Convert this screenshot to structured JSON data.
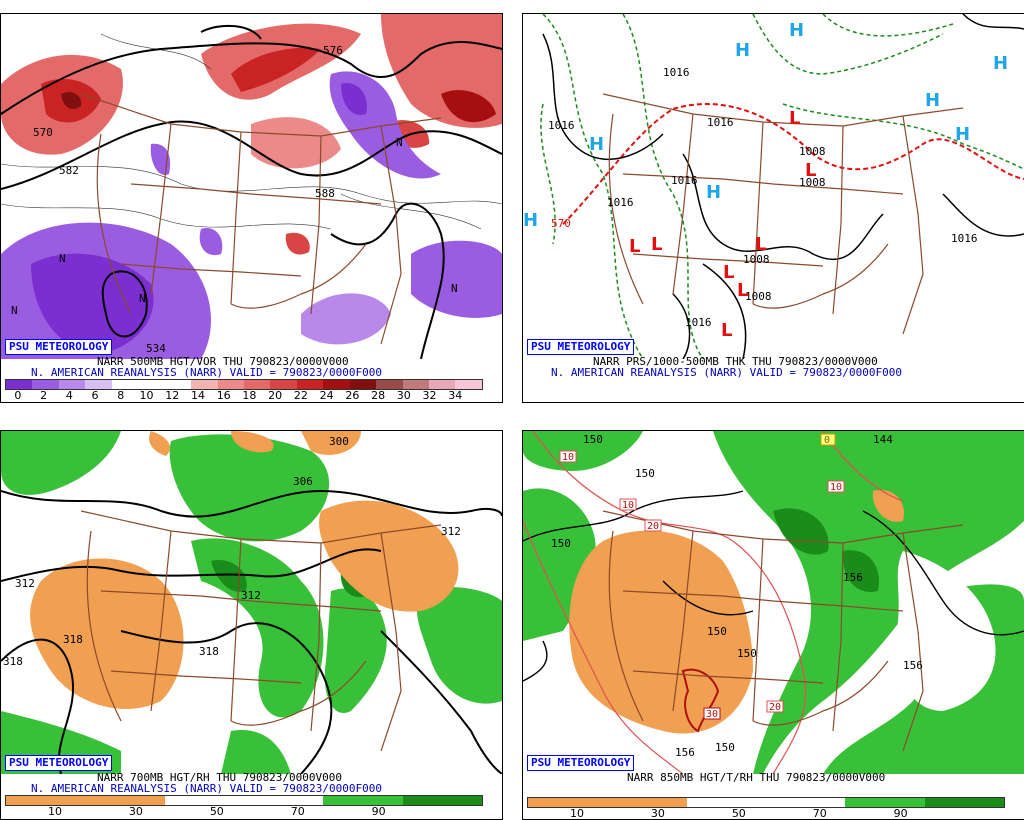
{
  "panels": [
    {
      "badge": "PSU METEOROLOGY",
      "caption1": "NARR 500MB HGT/VOR THU 790823/0000V000",
      "caption2": "N. AMERICAN REANALYSIS (NARR) VALID = 790823/0000F000",
      "contour_labels": [
        "570",
        "582",
        "576",
        "534",
        "588",
        "N",
        "N",
        "N",
        "N",
        "N"
      ],
      "colorbar": {
        "ticks": [
          "0",
          "2",
          "4",
          "6",
          "8",
          "10",
          "12",
          "14",
          "16",
          "18",
          "20",
          "22",
          "24",
          "26",
          "28",
          "30",
          "32",
          "34"
        ],
        "colors": [
          "#7b2fd0",
          "#9a5ce0",
          "#b889ea",
          "#d6bff2",
          "#ffffff",
          "#ffffff",
          "#ffffff",
          "#f3b3b3",
          "#ec8a8a",
          "#e46a6a",
          "#d94444",
          "#c92323",
          "#a60f0f",
          "#801010",
          "#9a4a4a",
          "#c07a7a",
          "#e8a8b8",
          "#f8c8d8"
        ]
      }
    },
    {
      "badge": "PSU METEOROLOGY",
      "caption1": "NARR PRS/1000-500MB THK THU 790823/0000V000",
      "caption2": "N. AMERICAN REANALYSIS (NARR) VALID = 790823/0000F000",
      "labels": [
        "1016",
        "1016",
        "1016",
        "1008",
        "1008",
        "1008",
        "1016",
        "1016",
        "1016",
        "1008",
        "1016",
        "570"
      ],
      "highs": [
        "H",
        "H",
        "H",
        "H",
        "H",
        "H",
        "H",
        "H"
      ],
      "lows": [
        "L",
        "L",
        "L",
        "L",
        "L",
        "L",
        "L",
        "L"
      ]
    },
    {
      "badge": "PSU METEOROLOGY",
      "caption1": "NARR 700MB HGT/RH THU 790823/0000V000",
      "caption2": "N. AMERICAN REANALYSIS (NARR) VALID = 790823/0000F000",
      "contour_labels": [
        "300",
        "306",
        "312",
        "312",
        "318",
        "318",
        "318",
        "312"
      ],
      "colorbar": {
        "ticks": [
          "10",
          "30",
          "50",
          "70",
          "90"
        ],
        "colors": [
          "#f0a050",
          "#f0a050",
          "#ffffff",
          "#ffffff",
          "#39c039",
          "#1a8c1a"
        ]
      }
    },
    {
      "badge": "PSU METEOROLOGY",
      "caption1": "NARR 850MB HGT/T/RH THU 790823/0000V000",
      "caption2": "",
      "contour_labels": [
        "150",
        "150",
        "150",
        "150",
        "150",
        "150",
        "156",
        "156",
        "156",
        "144"
      ],
      "temp_labels": [
        "10",
        "10",
        "10",
        "20",
        "20",
        "30",
        "0"
      ],
      "colorbar": {
        "ticks": [
          "10",
          "30",
          "50",
          "70",
          "90"
        ],
        "colors": [
          "#f0a050",
          "#f0a050",
          "#ffffff",
          "#ffffff",
          "#39c039",
          "#1a8c1a"
        ]
      }
    }
  ]
}
